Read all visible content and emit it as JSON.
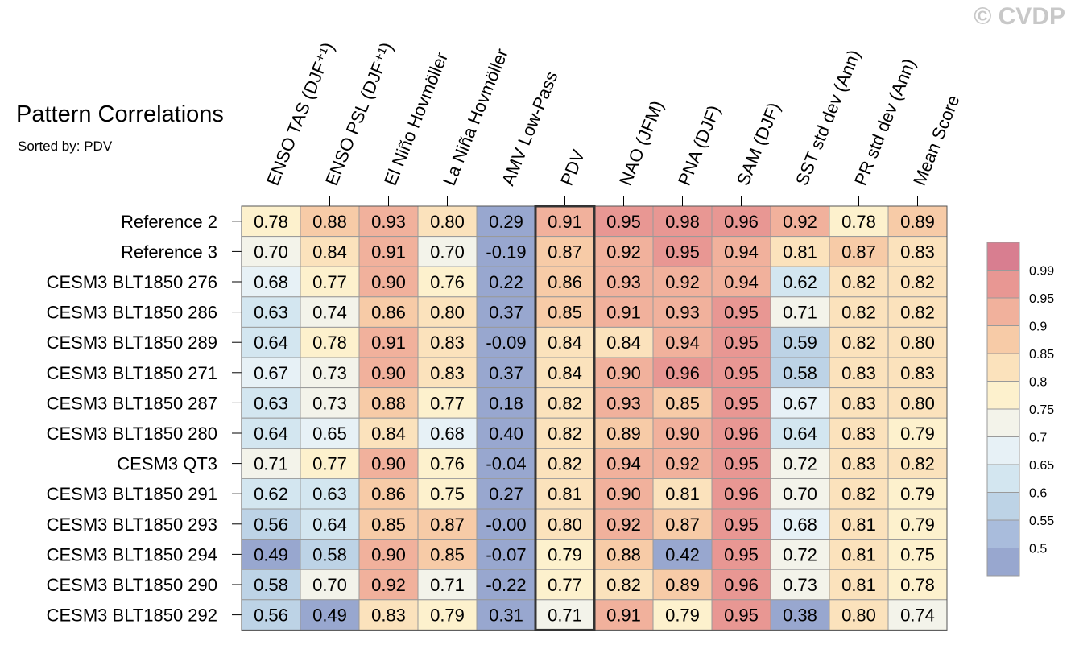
{
  "copyright": "© CVDP",
  "chart_data": {
    "type": "heatmap",
    "title": "Pattern Correlations",
    "subtitle": "Sorted by: PDV",
    "columns": [
      "ENSO TAS (DJF⁺¹)",
      "ENSO PSL (DJF⁺¹)",
      "El Niño Hovmöller",
      "La Niña Hovmöller",
      "AMV Low-Pass",
      "PDV",
      "NAO (JFM)",
      "PNA (DJF)",
      "SAM (DJF)",
      "SST std dev (Ann)",
      "PR std dev (Ann)",
      "Mean Score"
    ],
    "highlighted_column": "PDV",
    "rows": [
      {
        "label": "Reference 2",
        "values": [
          "0.78",
          "0.88",
          "0.93",
          "0.80",
          "0.29",
          "0.91",
          "0.95",
          "0.98",
          "0.96",
          "0.92",
          "0.78",
          "0.89"
        ]
      },
      {
        "label": "Reference 3",
        "values": [
          "0.70",
          "0.84",
          "0.91",
          "0.70",
          "-0.19",
          "0.87",
          "0.92",
          "0.95",
          "0.94",
          "0.81",
          "0.87",
          "0.83"
        ]
      },
      {
        "label": "CESM3 BLT1850 276",
        "values": [
          "0.68",
          "0.77",
          "0.90",
          "0.76",
          "0.22",
          "0.86",
          "0.93",
          "0.92",
          "0.94",
          "0.62",
          "0.82",
          "0.82"
        ]
      },
      {
        "label": "CESM3 BLT1850 286",
        "values": [
          "0.63",
          "0.74",
          "0.86",
          "0.80",
          "0.37",
          "0.85",
          "0.91",
          "0.93",
          "0.95",
          "0.71",
          "0.82",
          "0.82"
        ]
      },
      {
        "label": "CESM3 BLT1850 289",
        "values": [
          "0.64",
          "0.78",
          "0.91",
          "0.83",
          "-0.09",
          "0.84",
          "0.84",
          "0.94",
          "0.95",
          "0.59",
          "0.82",
          "0.80"
        ]
      },
      {
        "label": "CESM3 BLT1850 271",
        "values": [
          "0.67",
          "0.73",
          "0.90",
          "0.83",
          "0.37",
          "0.84",
          "0.90",
          "0.96",
          "0.95",
          "0.58",
          "0.83",
          "0.83"
        ]
      },
      {
        "label": "CESM3 BLT1850 287",
        "values": [
          "0.63",
          "0.73",
          "0.88",
          "0.77",
          "0.18",
          "0.82",
          "0.93",
          "0.85",
          "0.95",
          "0.67",
          "0.83",
          "0.80"
        ]
      },
      {
        "label": "CESM3 BLT1850 280",
        "values": [
          "0.64",
          "0.65",
          "0.84",
          "0.68",
          "0.40",
          "0.82",
          "0.89",
          "0.90",
          "0.96",
          "0.64",
          "0.83",
          "0.79"
        ]
      },
      {
        "label": "CESM3 QT3",
        "values": [
          "0.71",
          "0.77",
          "0.90",
          "0.76",
          "-0.04",
          "0.82",
          "0.94",
          "0.92",
          "0.95",
          "0.72",
          "0.83",
          "0.82"
        ]
      },
      {
        "label": "CESM3 BLT1850 291",
        "values": [
          "0.62",
          "0.63",
          "0.86",
          "0.75",
          "0.27",
          "0.81",
          "0.90",
          "0.81",
          "0.96",
          "0.70",
          "0.82",
          "0.79"
        ]
      },
      {
        "label": "CESM3 BLT1850 293",
        "values": [
          "0.56",
          "0.64",
          "0.85",
          "0.87",
          "-0.00",
          "0.80",
          "0.92",
          "0.87",
          "0.95",
          "0.68",
          "0.81",
          "0.79"
        ]
      },
      {
        "label": "CESM3 BLT1850 294",
        "values": [
          "0.49",
          "0.58",
          "0.90",
          "0.85",
          "-0.07",
          "0.79",
          "0.88",
          "0.42",
          "0.95",
          "0.72",
          "0.81",
          "0.75"
        ]
      },
      {
        "label": "CESM3 BLT1850 290",
        "values": [
          "0.58",
          "0.70",
          "0.92",
          "0.71",
          "-0.22",
          "0.77",
          "0.82",
          "0.89",
          "0.96",
          "0.73",
          "0.81",
          "0.78"
        ]
      },
      {
        "label": "CESM3 BLT1850 292",
        "values": [
          "0.56",
          "0.49",
          "0.83",
          "0.79",
          "0.31",
          "0.71",
          "0.91",
          "0.79",
          "0.95",
          "0.38",
          "0.80",
          "0.74"
        ]
      }
    ],
    "colorbar": {
      "levels": [
        0.5,
        0.55,
        0.6,
        0.65,
        0.7,
        0.75,
        0.8,
        0.85,
        0.9,
        0.95,
        0.99
      ],
      "tick_labels": [
        "0.5",
        "0.55",
        "0.6",
        "0.65",
        "0.7",
        "0.75",
        "0.8",
        "0.85",
        "0.9",
        "0.95",
        "0.99"
      ],
      "colors": [
        "#98a7cf",
        "#a9bcdc",
        "#bdd3e6",
        "#d3e6f0",
        "#e7f1f6",
        "#f3f3ea",
        "#fdf1cd",
        "#fbe2bc",
        "#f7cba7",
        "#f1b19c",
        "#e89793",
        "#d87e90"
      ]
    }
  }
}
